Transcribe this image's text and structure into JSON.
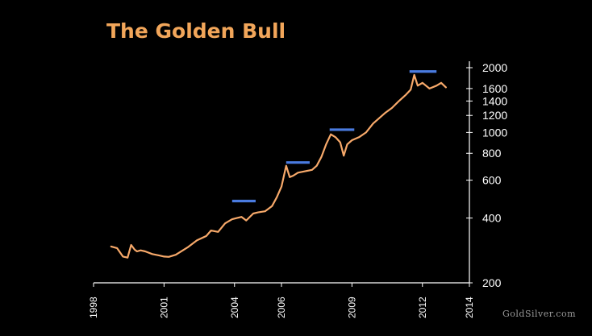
{
  "header": {
    "title": "The Golden Bull"
  },
  "footer": {
    "watermark": "GoldSilver.com"
  },
  "colors": {
    "background": "#000000",
    "title": "#f2a65a",
    "price_line": "#f7a96a",
    "resistance": "#4a7be0",
    "axis": "#ffffff"
  },
  "chart_data": {
    "type": "line",
    "title": "The Golden Bull",
    "xlabel": "",
    "ylabel": "",
    "y_scale": "log",
    "xlim": [
      1998,
      2014
    ],
    "ylim": [
      200,
      2000
    ],
    "x_ticks": [
      "1998",
      "2001",
      "2004",
      "2006",
      "2009",
      "2012",
      "2014"
    ],
    "y_ticks": [
      200,
      400,
      600,
      800,
      1000,
      1200,
      1400,
      1600,
      2000
    ],
    "grid": false,
    "legend": "none",
    "series": [
      {
        "x": [
          1998.75,
          1999.0,
          1999.25,
          1999.45,
          1999.6,
          1999.75,
          1999.85,
          2000.0,
          2000.2,
          2000.5,
          2000.8,
          2001.0,
          2001.2,
          2001.5,
          2001.8,
          2002.0,
          2002.4,
          2002.8,
          2003.0,
          2003.3,
          2003.6,
          2003.9,
          2004.1,
          2004.3,
          2004.5,
          2004.8,
          2005.0,
          2005.3,
          2005.6,
          2005.8,
          2006.0,
          2006.2,
          2006.35,
          2006.5,
          2006.7,
          2007.0,
          2007.3,
          2007.5,
          2007.7,
          2007.9,
          2008.1,
          2008.3,
          2008.5,
          2008.65,
          2008.8,
          2009.0,
          2009.3,
          2009.6,
          2009.9,
          2010.1,
          2010.4,
          2010.7,
          2011.0,
          2011.3,
          2011.5,
          2011.65,
          2011.8,
          2012.0,
          2012.3,
          2012.6,
          2012.8,
          2013.0
        ],
        "y": [
          295,
          290,
          265,
          262,
          300,
          285,
          280,
          283,
          280,
          272,
          268,
          265,
          264,
          270,
          283,
          292,
          315,
          330,
          350,
          345,
          378,
          395,
          400,
          405,
          390,
          420,
          425,
          430,
          455,
          500,
          560,
          700,
          620,
          630,
          650,
          660,
          670,
          700,
          770,
          880,
          980,
          950,
          900,
          780,
          880,
          920,
          950,
          1000,
          1100,
          1150,
          1230,
          1300,
          1400,
          1500,
          1580,
          1850,
          1650,
          1700,
          1600,
          1650,
          1700,
          1620
        ]
      }
    ],
    "resistance_levels": [
      {
        "x_start": 2003.9,
        "x_end": 2004.9,
        "y": 480
      },
      {
        "x_start": 2006.2,
        "x_end": 2007.2,
        "y": 725
      },
      {
        "x_start": 2008.05,
        "x_end": 2009.1,
        "y": 1030
      },
      {
        "x_start": 2011.45,
        "x_end": 2012.6,
        "y": 1920
      }
    ]
  }
}
